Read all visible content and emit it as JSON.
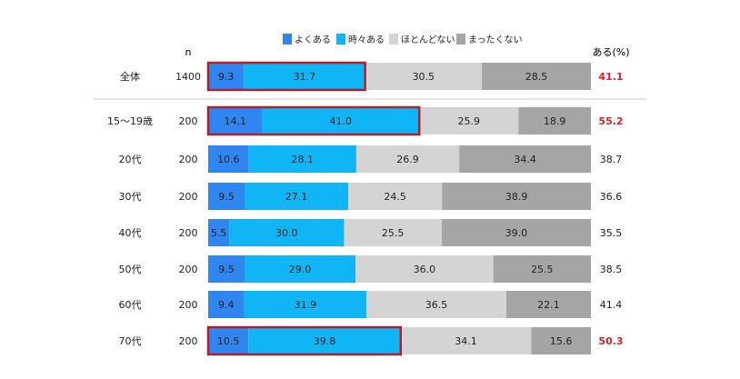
{
  "chart_data": {
    "type": "bar",
    "orientation": "horizontal",
    "stacked": true,
    "percent": true,
    "n_header": "n",
    "total_header": "ある(%)",
    "legend_position": "top",
    "series": [
      {
        "name": "よくある",
        "color": "#2f86f0"
      },
      {
        "name": "時々ある",
        "color": "#0fb5f5"
      },
      {
        "name": "ほとんどない",
        "color": "#d4d4d4"
      },
      {
        "name": "まったくない",
        "color": "#a5a5a8"
      }
    ],
    "rows": [
      {
        "label": "全体",
        "n": "1400",
        "values": [
          9.3,
          31.7,
          30.5,
          28.5
        ],
        "total": "41.1",
        "highlight": true
      },
      {
        "label": "15～19歳",
        "n": "200",
        "values": [
          14.1,
          41.0,
          25.9,
          18.9
        ],
        "total": "55.2",
        "highlight": true
      },
      {
        "label": "20代",
        "n": "200",
        "values": [
          10.6,
          28.1,
          26.9,
          34.4
        ],
        "total": "38.7",
        "highlight": false
      },
      {
        "label": "30代",
        "n": "200",
        "values": [
          9.5,
          27.1,
          24.5,
          38.9
        ],
        "total": "36.6",
        "highlight": false
      },
      {
        "label": "40代",
        "n": "200",
        "values": [
          5.5,
          30.0,
          25.5,
          39.0
        ],
        "total": "35.5",
        "highlight": false
      },
      {
        "label": "50代",
        "n": "200",
        "values": [
          9.5,
          29.0,
          36.0,
          25.5
        ],
        "total": "38.5",
        "highlight": false
      },
      {
        "label": "60代",
        "n": "200",
        "values": [
          9.4,
          31.9,
          36.5,
          22.1
        ],
        "total": "41.4",
        "highlight": false
      },
      {
        "label": "70代",
        "n": "200",
        "values": [
          10.5,
          39.8,
          34.1,
          15.6
        ],
        "total": "50.3",
        "highlight": true
      }
    ],
    "colors": {
      "highlight_box": "#b0202a",
      "highlight_total": "#e0202a",
      "text": "#222222",
      "divider": "#cccccc"
    }
  }
}
